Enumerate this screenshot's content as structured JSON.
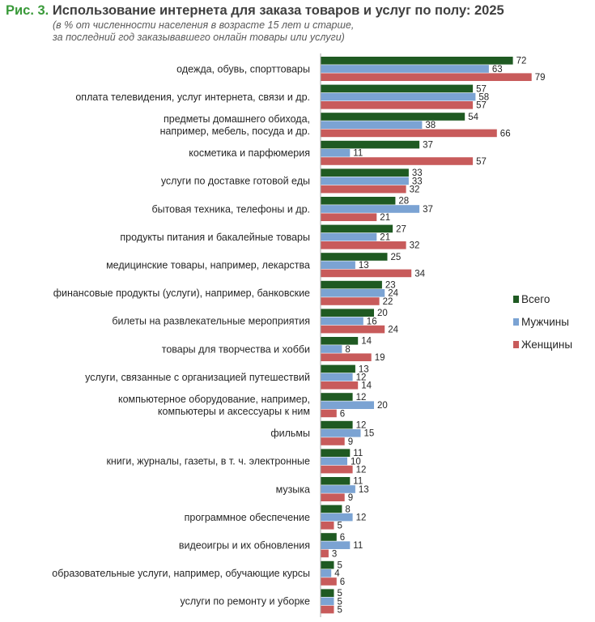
{
  "figure_label": "Рис. 3.",
  "title": "Использование интернета для заказа товаров и услуг по полу: 2025",
  "subtitle_lines": [
    "(в % от численности населения в возрасте 15 лет и старше,",
    "за последний год заказывавшего онлайн товары или услуги)"
  ],
  "colors": {
    "Всего": "#1f5a22",
    "Мужчины": "#7ba3d3",
    "Женщины": "#c85b5b"
  },
  "chart_data": {
    "type": "bar",
    "orientation": "horizontal",
    "title": "Использование интернета для заказа товаров и услуг по полу: 2025",
    "subtitle": "(в % от численности населения в возрасте 15 лет и старше, за последний год заказывавшего онлайн товары или услуги)",
    "xlabel": "",
    "ylabel": "",
    "xlim": [
      0,
      80
    ],
    "grid": false,
    "legend_position": "right",
    "categories": [
      [
        "одежда, обувь, спорттовары"
      ],
      [
        "оплата телевидения, услуг интернета, связи и др."
      ],
      [
        "предметы домашнего обихода,",
        "например, мебель, посуда и др."
      ],
      [
        "косметика и парфюмерия"
      ],
      [
        "услуги по доставке готовой еды"
      ],
      [
        "бытовая техника, телефоны и др."
      ],
      [
        "продукты питания и бакалейные товары"
      ],
      [
        "медицинские товары, например, лекарства"
      ],
      [
        "финансовые продукты (услуги), например, банковские"
      ],
      [
        "билеты на развлекательные мероприятия"
      ],
      [
        "товары для творчества и хобби"
      ],
      [
        "услуги, связанные с организацией путешествий"
      ],
      [
        "компьютерное оборудование, например,",
        "компьютеры и аксессуары к ним"
      ],
      [
        "фильмы"
      ],
      [
        "книги, журналы, газеты, в т. ч. электронные"
      ],
      [
        "музыка"
      ],
      [
        "программное обеспечение"
      ],
      [
        "видеоигры и их обновления"
      ],
      [
        "образовательные услуги, например, обучающие курсы"
      ],
      [
        "услуги по ремонту и уборке"
      ]
    ],
    "series": [
      {
        "name": "Всего",
        "values": [
          72,
          57,
          54,
          37,
          33,
          28,
          27,
          25,
          23,
          20,
          14,
          13,
          12,
          12,
          11,
          11,
          8,
          6,
          5,
          5
        ]
      },
      {
        "name": "Мужчины",
        "values": [
          63,
          58,
          38,
          11,
          33,
          37,
          21,
          13,
          24,
          16,
          8,
          12,
          20,
          15,
          10,
          13,
          12,
          11,
          4,
          5
        ]
      },
      {
        "name": "Женщины",
        "values": [
          79,
          57,
          66,
          57,
          32,
          21,
          32,
          34,
          22,
          24,
          19,
          14,
          6,
          9,
          12,
          9,
          5,
          3,
          6,
          5
        ]
      }
    ]
  }
}
